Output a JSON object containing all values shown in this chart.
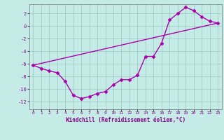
{
  "xlabel": "Windchill (Refroidissement éolien,°C)",
  "background_color": "#c5ebe7",
  "grid_color": "#a0ccc8",
  "line_color": "#aa00aa",
  "xlim": [
    -0.5,
    23.5
  ],
  "ylim": [
    -13.2,
    3.5
  ],
  "yticks": [
    -12,
    -10,
    -8,
    -6,
    -4,
    -2,
    0,
    2
  ],
  "xticks": [
    0,
    1,
    2,
    3,
    4,
    5,
    6,
    7,
    8,
    9,
    10,
    11,
    12,
    13,
    14,
    15,
    16,
    17,
    18,
    19,
    20,
    21,
    22,
    23
  ],
  "curve1_x": [
    0,
    1,
    2,
    3,
    4,
    5,
    6,
    7,
    8,
    9,
    10,
    11,
    12,
    13,
    14,
    15,
    16,
    17,
    18,
    19,
    20,
    21,
    22,
    23
  ],
  "curve1_y": [
    -6.2,
    -6.7,
    -7.1,
    -7.4,
    -8.8,
    -11.0,
    -11.5,
    -11.2,
    -10.7,
    -10.4,
    -9.3,
    -8.5,
    -8.5,
    -7.8,
    -4.8,
    -4.8,
    -2.7,
    1.0,
    2.0,
    3.0,
    2.5,
    1.5,
    0.8,
    0.5
  ],
  "curve2_x": [
    0,
    23
  ],
  "curve2_y": [
    -6.2,
    0.5
  ],
  "marker": "D",
  "markersize": 2.5,
  "linewidth": 1.0
}
